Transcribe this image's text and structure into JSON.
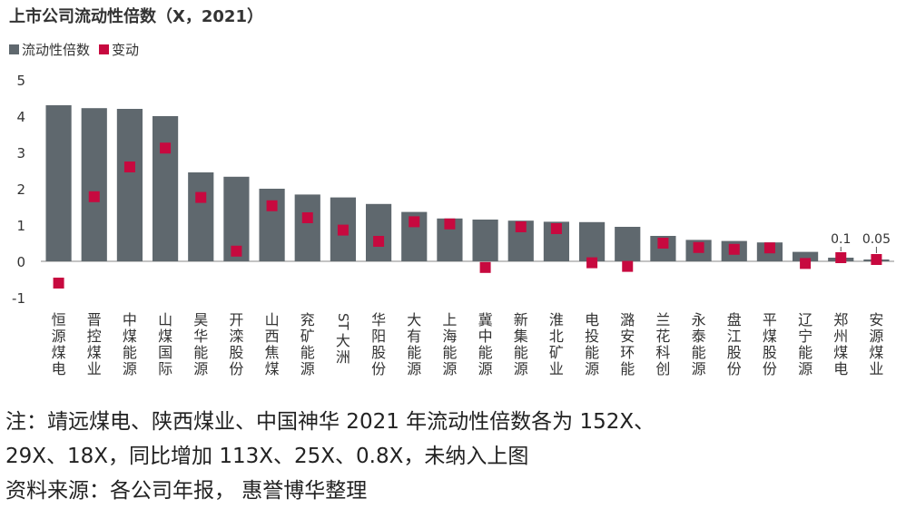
{
  "title": "上市公司流动性倍数（X，2021）",
  "colors": {
    "bar": "#5f686e",
    "marker": "#c7093f",
    "axis": "#888888"
  },
  "legend": [
    {
      "name": "流动性倍数",
      "color": "#5f686e"
    },
    {
      "name": "变动",
      "color": "#c7093f"
    }
  ],
  "chart_data": {
    "type": "bar",
    "title": "上市公司流动性倍数（X，2021）",
    "ylim": [
      -1,
      5
    ],
    "yticks": [
      "-1",
      "0",
      "1",
      "2",
      "3",
      "4",
      "5"
    ],
    "grid": false,
    "legend_position": "top-left",
    "categories": [
      "恒源煤电",
      "晋控煤业",
      "中煤能源",
      "山煤国际",
      "昊华能源",
      "开滦股份",
      "山西焦煤",
      "兖矿能源",
      "ST大洲",
      "华阳股份",
      "大有能源",
      "上海能源",
      "冀中能源",
      "新集能源",
      "淮北矿业",
      "电投能源",
      "潞安环能",
      "兰花科创",
      "永泰能源",
      "盘江股份",
      "平煤股份",
      "辽宁能源",
      "郑州煤电",
      "安源煤业"
    ],
    "series": [
      {
        "name": "流动性倍数",
        "type": "bar",
        "values": [
          4.3,
          4.22,
          4.2,
          4.0,
          2.45,
          2.33,
          2.0,
          1.84,
          1.76,
          1.58,
          1.36,
          1.18,
          1.15,
          1.12,
          1.09,
          1.08,
          0.95,
          0.7,
          0.59,
          0.56,
          0.52,
          0.26,
          0.1,
          0.05
        ]
      },
      {
        "name": "变动",
        "type": "scatter",
        "values": [
          -0.6,
          1.78,
          2.6,
          3.12,
          1.76,
          0.28,
          1.53,
          1.2,
          0.86,
          0.55,
          1.09,
          1.03,
          -0.17,
          0.95,
          0.9,
          -0.04,
          -0.14,
          0.5,
          0.38,
          0.33,
          0.37,
          -0.06,
          0.1,
          0.05
        ]
      }
    ],
    "data_labels": [
      {
        "index": 22,
        "text": "0.1"
      },
      {
        "index": 23,
        "text": "0.05"
      }
    ]
  },
  "notes": [
    "注：靖远煤电、陕西煤业、中国神华 2021 年流动性倍数各为 152X、",
    "29X、18X，同比增加 113X、25X、0.8X，未纳入上图",
    "资料来源：各公司年报， 惠誉博华整理"
  ]
}
